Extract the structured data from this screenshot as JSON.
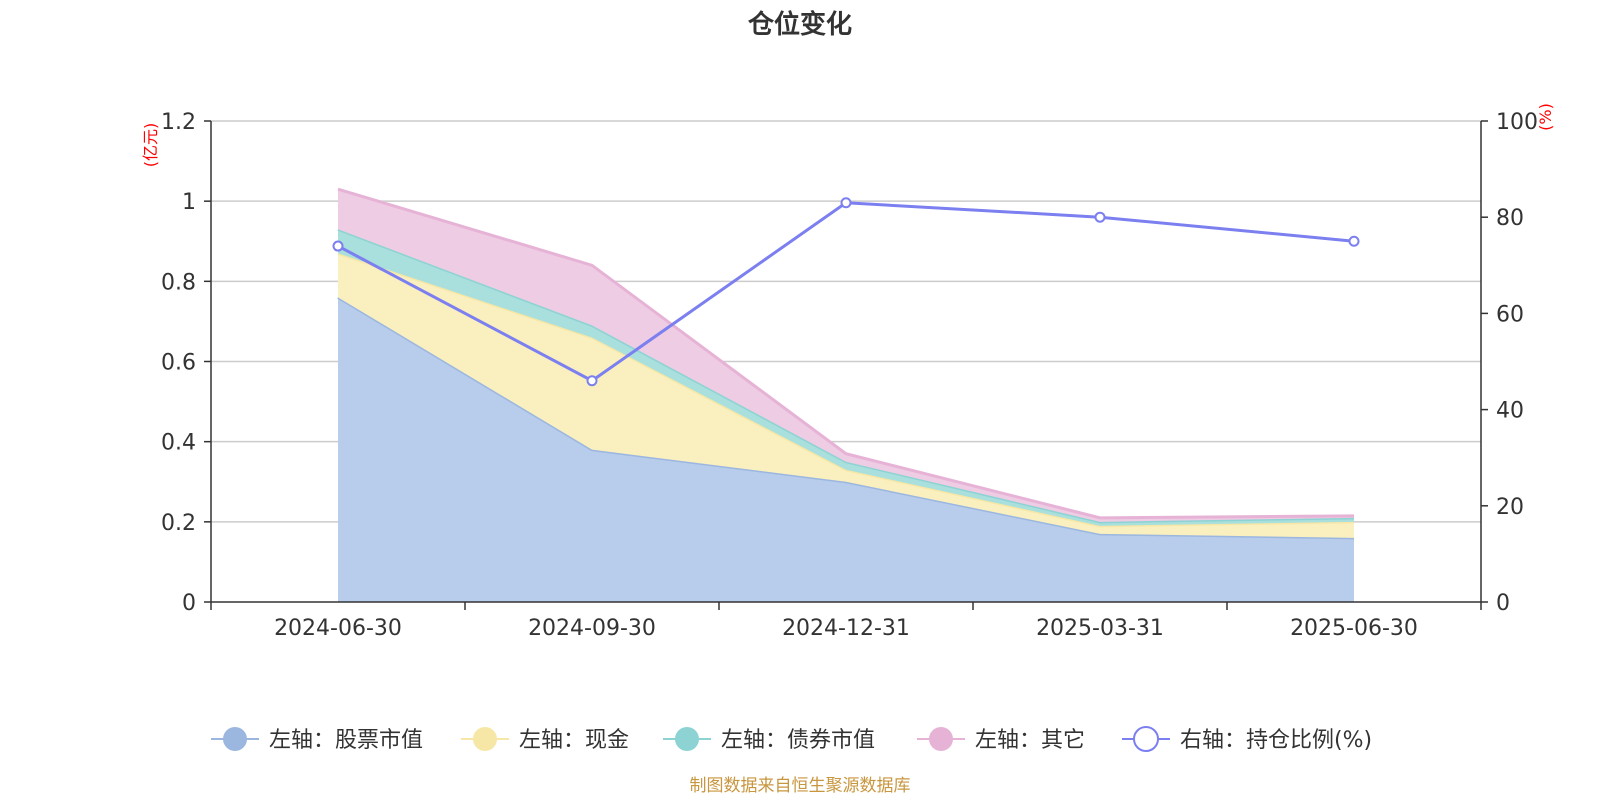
{
  "chart_data": {
    "type": "area",
    "title": "仓位变化",
    "categories": [
      "2024-06-30",
      "2024-09-30",
      "2024-12-31",
      "2025-03-31",
      "2025-06-30"
    ],
    "left_axis": {
      "unit": "(亿元)",
      "ylim": [
        0,
        1.2
      ],
      "ticks": [
        "0",
        "0.2",
        "0.4",
        "0.6",
        "0.8",
        "1",
        "1.2"
      ]
    },
    "right_axis": {
      "unit": "(%)",
      "ylim": [
        0,
        100
      ],
      "ticks": [
        "0",
        "20",
        "40",
        "60",
        "80",
        "100"
      ]
    },
    "stacked_series": [
      {
        "name": "左轴：股票市值",
        "values": [
          0.76,
          0.38,
          0.3,
          0.17,
          0.16
        ],
        "color": "#9bb7e0",
        "fill": "#b8cceb"
      },
      {
        "name": "左轴：现金",
        "values": [
          0.11,
          0.28,
          0.03,
          0.02,
          0.04
        ],
        "color": "#f7e7a6",
        "fill": "#faefbf"
      },
      {
        "name": "左轴：债券市值",
        "values": [
          0.06,
          0.03,
          0.02,
          0.01,
          0.01
        ],
        "color": "#8dd3d3",
        "fill": "#a9dfdc"
      },
      {
        "name": "左轴：其它",
        "values": [
          0.1,
          0.15,
          0.02,
          0.01,
          0.005
        ],
        "color": "#e6b3d6",
        "fill": "#eecce3"
      }
    ],
    "line_series": {
      "name": "右轴：持仓比例(%)",
      "values": [
        74,
        46,
        83,
        80,
        75
      ],
      "color": "#7b7ff0"
    },
    "grid": true,
    "legend_position": "bottom"
  },
  "source_text": "制图数据来自恒生聚源数据库"
}
